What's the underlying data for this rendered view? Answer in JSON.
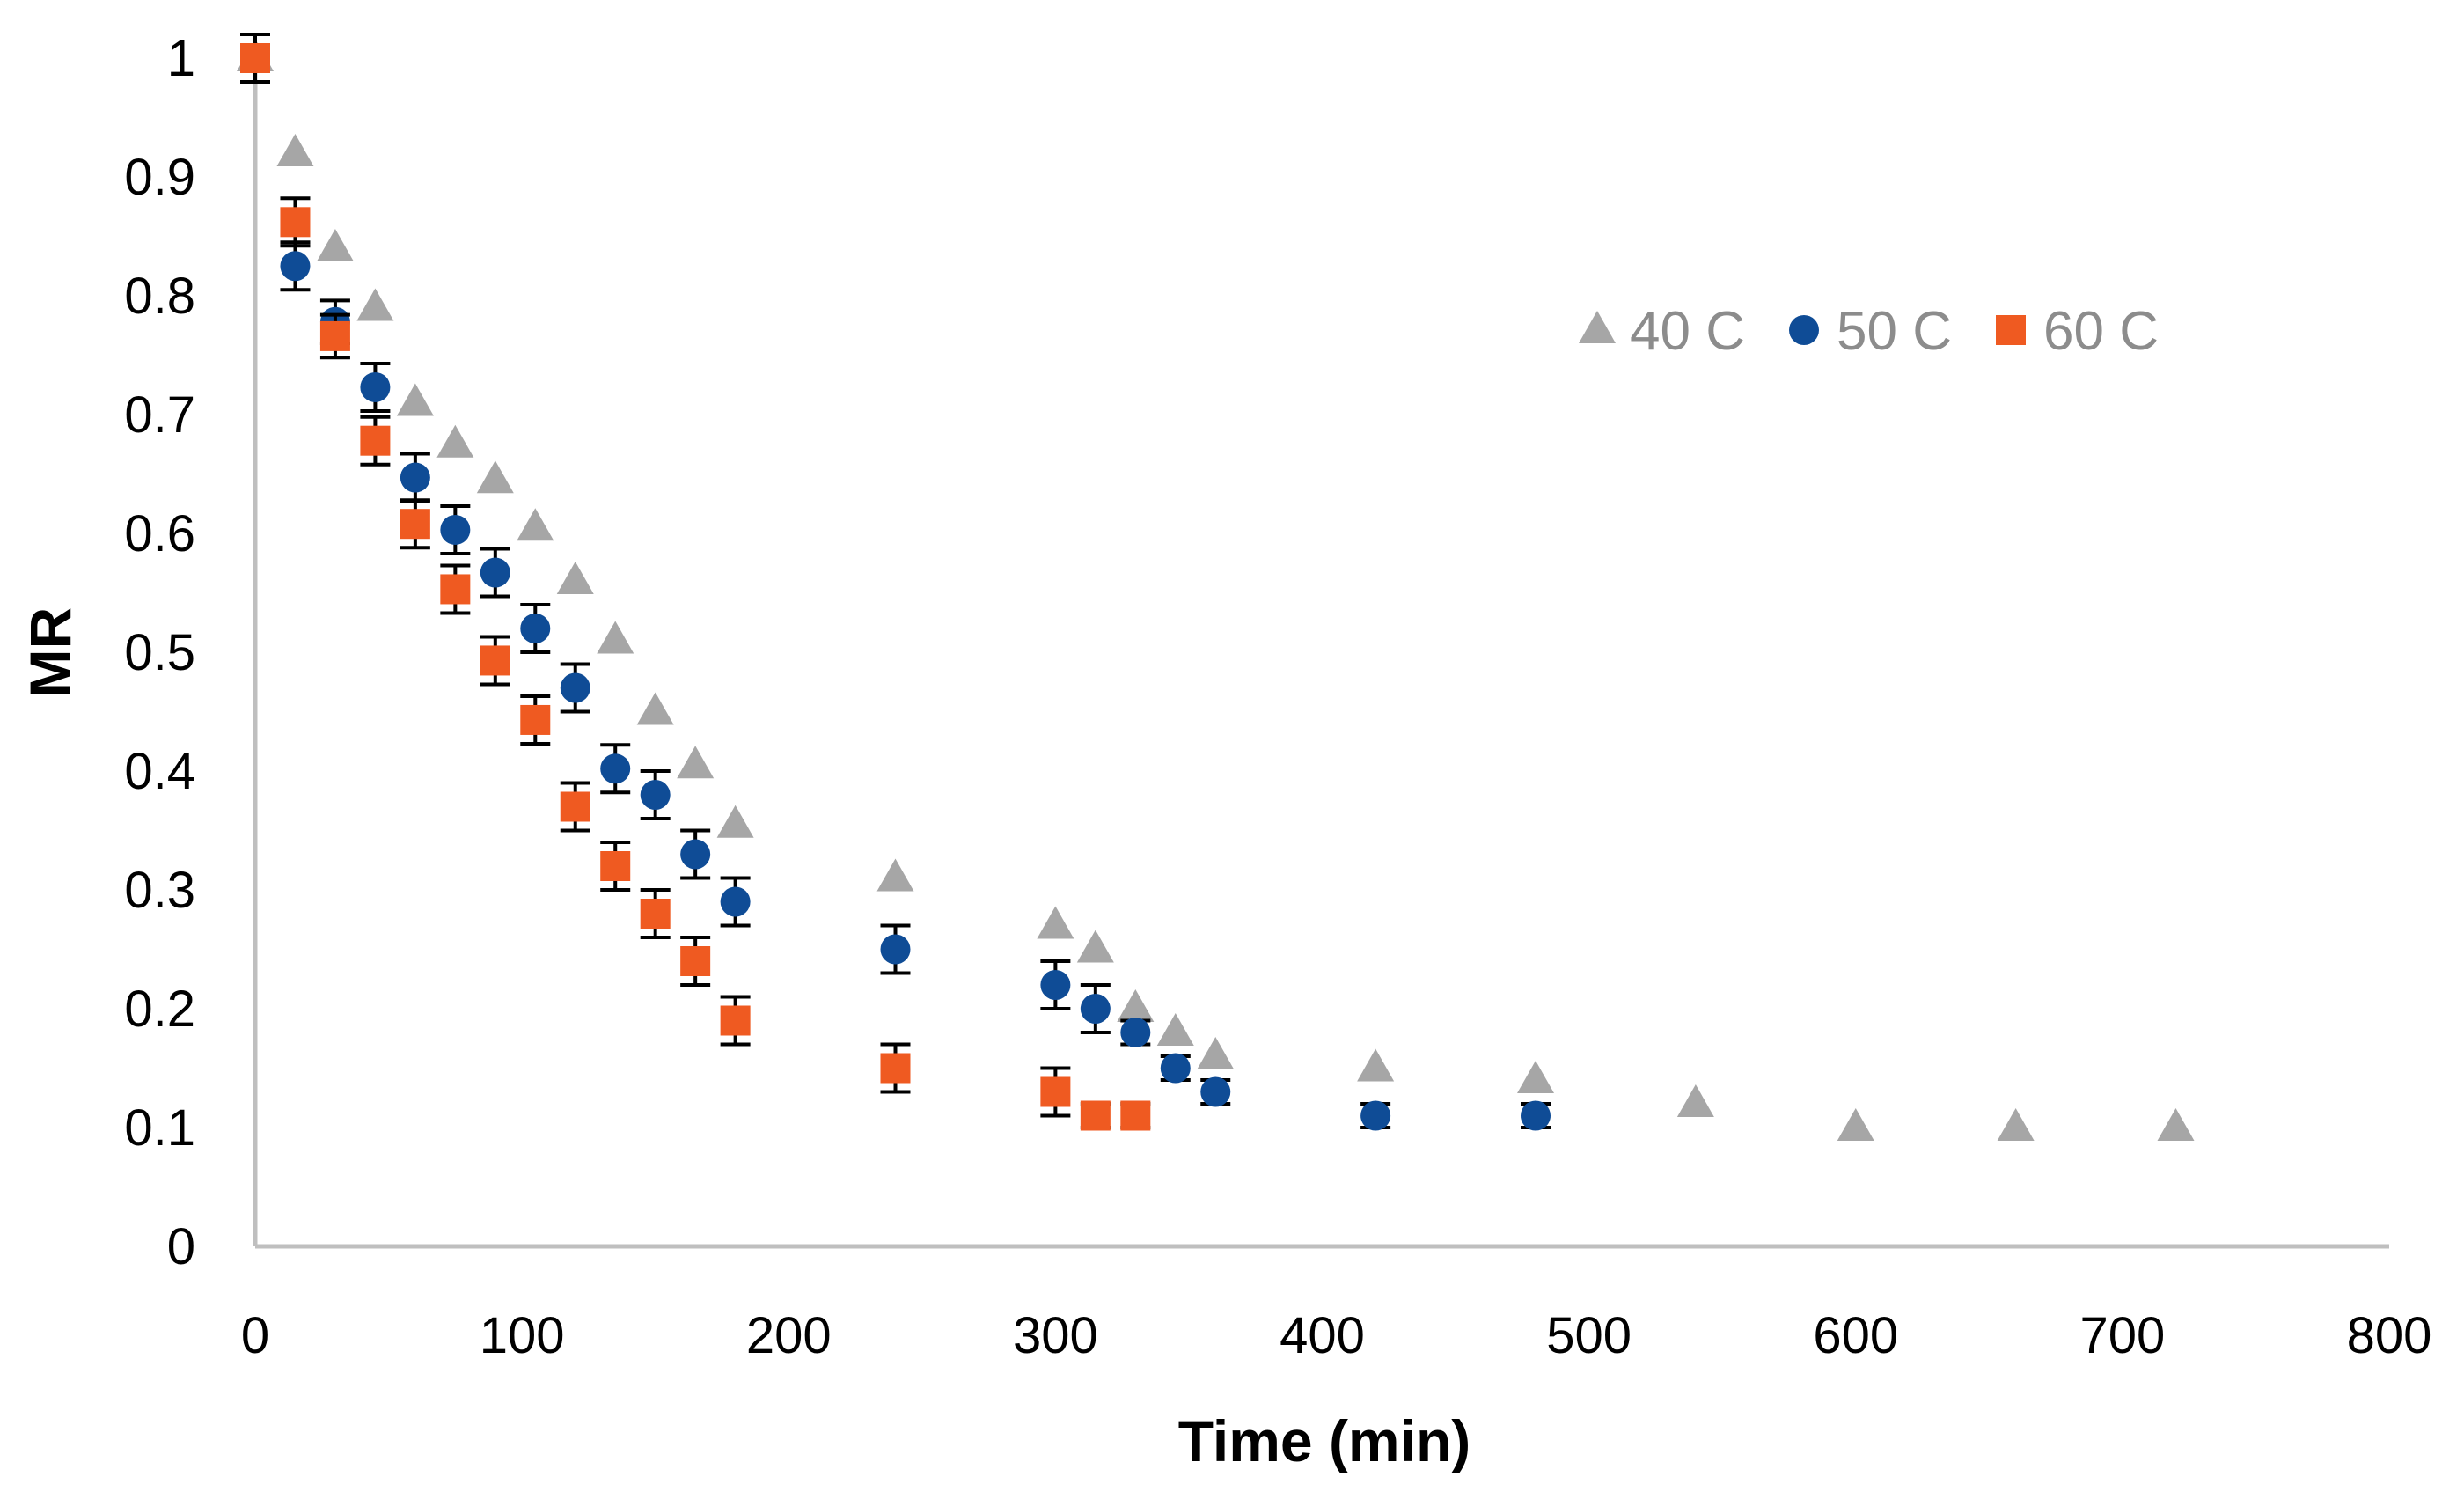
{
  "chart_data": {
    "type": "scatter",
    "title": "",
    "xlabel": "Time (min)",
    "ylabel": "MR",
    "xlim": [
      0,
      800
    ],
    "ylim": [
      0,
      1
    ],
    "x_ticks": [
      0,
      100,
      200,
      300,
      400,
      500,
      600,
      700,
      800
    ],
    "y_ticks": [
      0,
      0.1,
      0.2,
      0.3,
      0.4,
      0.5,
      0.6,
      0.7,
      0.8,
      0.9,
      1
    ],
    "x_tick_labels": [
      "0",
      "100",
      "200",
      "300",
      "400",
      "500",
      "600",
      "700",
      "800"
    ],
    "y_tick_labels": [
      "0",
      "0.1",
      "0.2",
      "0.3",
      "0.4",
      "0.5",
      "0.6",
      "0.7",
      "0.8",
      "0.9",
      "1"
    ],
    "grid": false,
    "legend_position": "top-right",
    "series": [
      {
        "name": "40 C",
        "marker": "triangle",
        "color": "#a6a6a6",
        "x": [
          0,
          15,
          30,
          45,
          60,
          75,
          90,
          105,
          120,
          135,
          150,
          165,
          180,
          240,
          300,
          315,
          330,
          345,
          360,
          420,
          480,
          540,
          600,
          660,
          720
        ],
        "y": [
          1.0,
          0.92,
          0.84,
          0.79,
          0.71,
          0.675,
          0.645,
          0.605,
          0.56,
          0.51,
          0.45,
          0.405,
          0.355,
          0.31,
          0.27,
          0.25,
          0.2,
          0.18,
          0.16,
          0.15,
          0.14,
          0.12,
          0.1,
          0.1,
          0.1
        ],
        "err": [
          0,
          0,
          0,
          0,
          0,
          0,
          0,
          0,
          0,
          0,
          0,
          0,
          0,
          0,
          0,
          0,
          0,
          0,
          0,
          0,
          0,
          0,
          0,
          0,
          0
        ]
      },
      {
        "name": "50 C",
        "marker": "circle",
        "color": "#0f4c96",
        "x": [
          0,
          15,
          30,
          45,
          60,
          75,
          90,
          105,
          120,
          135,
          150,
          165,
          180,
          240,
          300,
          315,
          330,
          345,
          360,
          420,
          480
        ],
        "y": [
          1.0,
          0.825,
          0.778,
          0.723,
          0.647,
          0.603,
          0.567,
          0.52,
          0.47,
          0.402,
          0.38,
          0.33,
          0.29,
          0.25,
          0.22,
          0.2,
          0.18,
          0.15,
          0.13,
          0.11,
          0.11
        ],
        "err": [
          0.02,
          0.02,
          0.018,
          0.02,
          0.02,
          0.02,
          0.02,
          0.02,
          0.02,
          0.02,
          0.02,
          0.02,
          0.02,
          0.02,
          0.02,
          0.02,
          0.01,
          0.01,
          0.01,
          0.01,
          0.01
        ]
      },
      {
        "name": "60 C",
        "marker": "square",
        "color": "#ef5a21",
        "x": [
          0,
          15,
          30,
          45,
          60,
          75,
          90,
          105,
          120,
          135,
          150,
          165,
          180,
          240,
          300,
          315,
          330
        ],
        "y": [
          1.0,
          0.862,
          0.766,
          0.678,
          0.608,
          0.553,
          0.493,
          0.443,
          0.37,
          0.32,
          0.28,
          0.24,
          0.19,
          0.15,
          0.13,
          0.11,
          0.11
        ],
        "err": [
          0.02,
          0.02,
          0.018,
          0.02,
          0.02,
          0.02,
          0.02,
          0.02,
          0.02,
          0.02,
          0.02,
          0.02,
          0.02,
          0.02,
          0.02,
          0.01,
          0.01
        ]
      }
    ]
  }
}
